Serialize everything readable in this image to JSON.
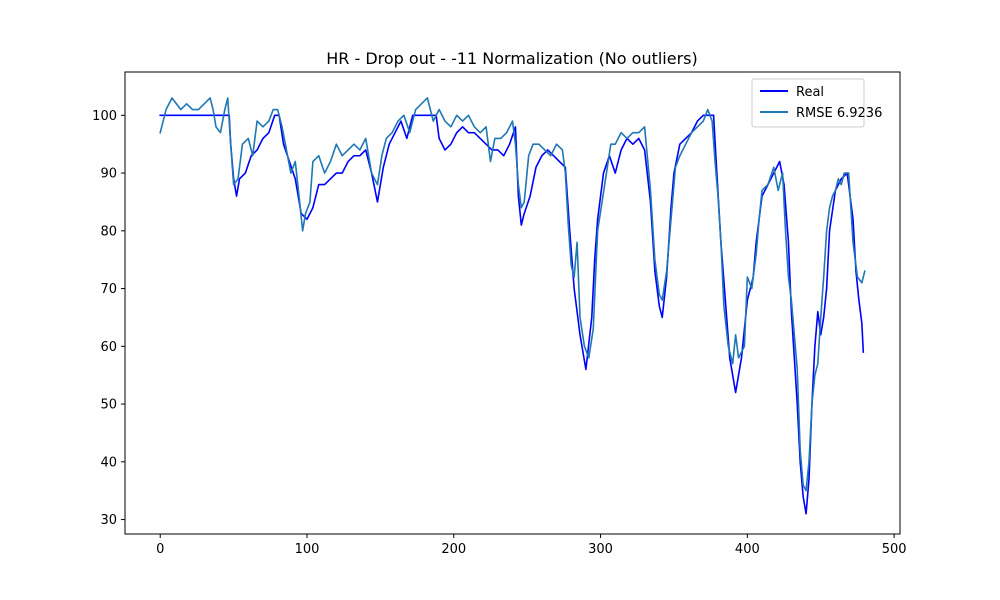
{
  "chart_data": {
    "type": "line",
    "title": "HR - Drop out - -11 Normalization (No outliers)",
    "xlabel": "",
    "ylabel": "",
    "xlim": [
      -24,
      504
    ],
    "ylim": [
      27.5,
      107.5
    ],
    "xticks": [
      0,
      100,
      200,
      300,
      400,
      500
    ],
    "yticks": [
      30,
      40,
      50,
      60,
      70,
      80,
      90,
      100
    ],
    "grid": false,
    "legend_position": "upper right",
    "series": [
      {
        "name": "Real",
        "color": "#0000ff",
        "points": [
          [
            0,
            100
          ],
          [
            47,
            100
          ],
          [
            48,
            95
          ],
          [
            50,
            89
          ],
          [
            52,
            86
          ],
          [
            54,
            89
          ],
          [
            58,
            90
          ],
          [
            62,
            93
          ],
          [
            66,
            94
          ],
          [
            70,
            96
          ],
          [
            74,
            97
          ],
          [
            78,
            100
          ],
          [
            81,
            100
          ],
          [
            84,
            95
          ],
          [
            88,
            92
          ],
          [
            92,
            89
          ],
          [
            96,
            83
          ],
          [
            100,
            82
          ],
          [
            104,
            84
          ],
          [
            108,
            88
          ],
          [
            112,
            88
          ],
          [
            116,
            89
          ],
          [
            120,
            90
          ],
          [
            124,
            90
          ],
          [
            128,
            92
          ],
          [
            132,
            93
          ],
          [
            136,
            93
          ],
          [
            140,
            94
          ],
          [
            144,
            90
          ],
          [
            148,
            85
          ],
          [
            152,
            91
          ],
          [
            156,
            95
          ],
          [
            160,
            97
          ],
          [
            164,
            99
          ],
          [
            168,
            96
          ],
          [
            172,
            100
          ],
          [
            178,
            100
          ],
          [
            184,
            100
          ],
          [
            188,
            100
          ],
          [
            190,
            96
          ],
          [
            194,
            94
          ],
          [
            198,
            95
          ],
          [
            202,
            97
          ],
          [
            206,
            98
          ],
          [
            210,
            97
          ],
          [
            214,
            97
          ],
          [
            218,
            96
          ],
          [
            222,
            95
          ],
          [
            226,
            94
          ],
          [
            230,
            94
          ],
          [
            234,
            93
          ],
          [
            238,
            95
          ],
          [
            242,
            98
          ],
          [
            244,
            86
          ],
          [
            246,
            81
          ],
          [
            248,
            83
          ],
          [
            252,
            86
          ],
          [
            256,
            91
          ],
          [
            260,
            93
          ],
          [
            264,
            94
          ],
          [
            268,
            93
          ],
          [
            272,
            92
          ],
          [
            276,
            91
          ],
          [
            279,
            80
          ],
          [
            282,
            70
          ],
          [
            286,
            62
          ],
          [
            290,
            56
          ],
          [
            294,
            65
          ],
          [
            296,
            75
          ],
          [
            298,
            82
          ],
          [
            302,
            90
          ],
          [
            306,
            93
          ],
          [
            310,
            90
          ],
          [
            314,
            94
          ],
          [
            318,
            96
          ],
          [
            322,
            95
          ],
          [
            326,
            96
          ],
          [
            330,
            94
          ],
          [
            334,
            85
          ],
          [
            337,
            73
          ],
          [
            340,
            67
          ],
          [
            342,
            65
          ],
          [
            345,
            72
          ],
          [
            348,
            84
          ],
          [
            350,
            90
          ],
          [
            354,
            95
          ],
          [
            358,
            96
          ],
          [
            362,
            97
          ],
          [
            366,
            99
          ],
          [
            370,
            100
          ],
          [
            374,
            100
          ],
          [
            377,
            100
          ],
          [
            379,
            91
          ],
          [
            382,
            78
          ],
          [
            385,
            68
          ],
          [
            388,
            58
          ],
          [
            390,
            55
          ],
          [
            392,
            52
          ],
          [
            396,
            58
          ],
          [
            400,
            68
          ],
          [
            404,
            72
          ],
          [
            406,
            78
          ],
          [
            408,
            82
          ],
          [
            410,
            86
          ],
          [
            414,
            88
          ],
          [
            418,
            90
          ],
          [
            422,
            92
          ],
          [
            425,
            88
          ],
          [
            428,
            78
          ],
          [
            430,
            66
          ],
          [
            432,
            58
          ],
          [
            434,
            50
          ],
          [
            436,
            40
          ],
          [
            438,
            34
          ],
          [
            440,
            31
          ],
          [
            442,
            37
          ],
          [
            444,
            50
          ],
          [
            446,
            60
          ],
          [
            448,
            66
          ],
          [
            450,
            62
          ],
          [
            452,
            65
          ],
          [
            454,
            70
          ],
          [
            456,
            80
          ],
          [
            460,
            87
          ],
          [
            464,
            89
          ],
          [
            468,
            90
          ],
          [
            472,
            82
          ],
          [
            474,
            73
          ],
          [
            476,
            68
          ],
          [
            478,
            64
          ],
          [
            479,
            59
          ]
        ]
      },
      {
        "name": "RMSE 6.9236",
        "color": "#1f77b4",
        "points": [
          [
            0,
            97
          ],
          [
            2,
            99
          ],
          [
            4,
            101
          ],
          [
            6,
            102
          ],
          [
            8,
            103
          ],
          [
            11,
            102
          ],
          [
            14,
            101
          ],
          [
            18,
            102
          ],
          [
            22,
            101
          ],
          [
            26,
            101
          ],
          [
            30,
            102
          ],
          [
            34,
            103
          ],
          [
            36,
            101
          ],
          [
            38,
            98
          ],
          [
            41,
            97
          ],
          [
            44,
            101
          ],
          [
            46,
            103
          ],
          [
            48,
            95
          ],
          [
            50,
            88
          ],
          [
            53,
            89
          ],
          [
            56,
            95
          ],
          [
            60,
            96
          ],
          [
            63,
            93
          ],
          [
            66,
            99
          ],
          [
            70,
            98
          ],
          [
            74,
            99
          ],
          [
            77,
            101
          ],
          [
            80,
            101
          ],
          [
            83,
            98
          ],
          [
            86,
            94
          ],
          [
            89,
            90
          ],
          [
            92,
            92
          ],
          [
            95,
            85
          ],
          [
            97,
            80
          ],
          [
            99,
            83
          ],
          [
            102,
            85
          ],
          [
            104,
            92
          ],
          [
            108,
            93
          ],
          [
            112,
            90
          ],
          [
            116,
            92
          ],
          [
            120,
            95
          ],
          [
            124,
            93
          ],
          [
            128,
            94
          ],
          [
            132,
            95
          ],
          [
            136,
            94
          ],
          [
            140,
            96
          ],
          [
            144,
            90
          ],
          [
            148,
            88
          ],
          [
            151,
            93
          ],
          [
            154,
            96
          ],
          [
            158,
            97
          ],
          [
            162,
            99
          ],
          [
            166,
            100
          ],
          [
            170,
            97
          ],
          [
            174,
            101
          ],
          [
            178,
            102
          ],
          [
            182,
            103
          ],
          [
            186,
            99
          ],
          [
            190,
            101
          ],
          [
            194,
            99
          ],
          [
            198,
            98
          ],
          [
            202,
            100
          ],
          [
            206,
            99
          ],
          [
            210,
            100
          ],
          [
            214,
            98
          ],
          [
            218,
            97
          ],
          [
            222,
            98
          ],
          [
            225,
            92
          ],
          [
            228,
            96
          ],
          [
            232,
            96
          ],
          [
            236,
            97
          ],
          [
            240,
            99
          ],
          [
            242,
            95
          ],
          [
            244,
            88
          ],
          [
            246,
            84
          ],
          [
            248,
            85
          ],
          [
            251,
            93
          ],
          [
            254,
            95
          ],
          [
            258,
            95
          ],
          [
            262,
            94
          ],
          [
            266,
            93
          ],
          [
            270,
            95
          ],
          [
            274,
            94
          ],
          [
            276,
            90
          ],
          [
            278,
            81
          ],
          [
            280,
            74
          ],
          [
            282,
            72
          ],
          [
            284,
            78
          ],
          [
            286,
            65
          ],
          [
            289,
            60
          ],
          [
            292,
            58
          ],
          [
            295,
            63
          ],
          [
            298,
            80
          ],
          [
            301,
            85
          ],
          [
            304,
            90
          ],
          [
            307,
            95
          ],
          [
            310,
            95
          ],
          [
            314,
            97
          ],
          [
            318,
            96
          ],
          [
            322,
            97
          ],
          [
            326,
            97
          ],
          [
            330,
            98
          ],
          [
            334,
            87
          ],
          [
            337,
            75
          ],
          [
            340,
            69
          ],
          [
            342,
            68
          ],
          [
            345,
            73
          ],
          [
            348,
            82
          ],
          [
            351,
            91
          ],
          [
            354,
            93
          ],
          [
            358,
            95
          ],
          [
            362,
            97
          ],
          [
            366,
            98
          ],
          [
            370,
            99
          ],
          [
            373,
            101
          ],
          [
            376,
            99
          ],
          [
            378,
            92
          ],
          [
            380,
            86
          ],
          [
            382,
            78
          ],
          [
            384,
            67
          ],
          [
            387,
            60
          ],
          [
            390,
            57
          ],
          [
            392,
            62
          ],
          [
            394,
            58
          ],
          [
            398,
            60
          ],
          [
            400,
            72
          ],
          [
            403,
            70
          ],
          [
            406,
            76
          ],
          [
            408,
            82
          ],
          [
            410,
            87
          ],
          [
            414,
            88
          ],
          [
            418,
            91
          ],
          [
            421,
            87
          ],
          [
            424,
            90
          ],
          [
            426,
            80
          ],
          [
            428,
            72
          ],
          [
            430,
            68
          ],
          [
            432,
            62
          ],
          [
            434,
            56
          ],
          [
            436,
            42
          ],
          [
            438,
            36
          ],
          [
            440,
            35
          ],
          [
            442,
            40
          ],
          [
            444,
            50
          ],
          [
            446,
            55
          ],
          [
            448,
            57
          ],
          [
            450,
            65
          ],
          [
            452,
            72
          ],
          [
            454,
            80
          ],
          [
            456,
            84
          ],
          [
            458,
            86
          ],
          [
            460,
            87
          ],
          [
            462,
            89
          ],
          [
            464,
            88
          ],
          [
            466,
            90
          ],
          [
            469,
            90
          ],
          [
            472,
            78
          ],
          [
            475,
            72
          ],
          [
            478,
            71
          ],
          [
            480,
            73
          ]
        ]
      }
    ]
  }
}
